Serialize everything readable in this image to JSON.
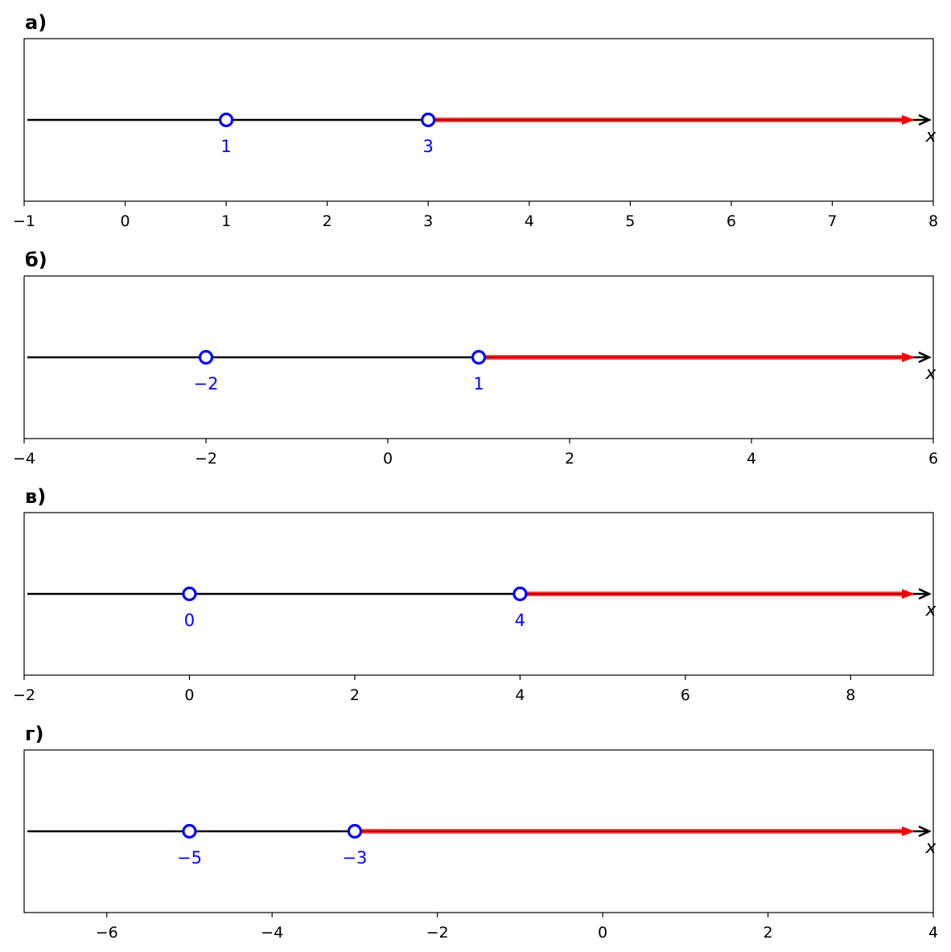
{
  "colors": {
    "axis_line": "#000000",
    "open_point_stroke": "#0000ff",
    "open_point_fill": "#ffffff",
    "point_label": "#0000ff",
    "solution_ray": "#ff0000",
    "frame": "#000000"
  },
  "chart_data": [
    {
      "type": "line",
      "panel_label": "а)",
      "xlim": [
        -1,
        8
      ],
      "xticks": [
        -1,
        0,
        1,
        2,
        3,
        4,
        5,
        6,
        7,
        8
      ],
      "xtick_labels": [
        "−1",
        "0",
        "1",
        "2",
        "3",
        "4",
        "5",
        "6",
        "7",
        "8"
      ],
      "axis_variable": "x",
      "open_points": [
        {
          "x": 1,
          "label": "1"
        },
        {
          "x": 3,
          "label": "3"
        }
      ],
      "ray": {
        "from": 3,
        "direction": "right"
      }
    },
    {
      "type": "line",
      "panel_label": "б)",
      "xlim": [
        -4,
        6
      ],
      "xticks": [
        -4,
        -2,
        0,
        2,
        4,
        6
      ],
      "xtick_labels": [
        "−4",
        "−2",
        "0",
        "2",
        "4",
        "6"
      ],
      "axis_variable": "x",
      "open_points": [
        {
          "x": -2,
          "label": "−2"
        },
        {
          "x": 1,
          "label": "1"
        }
      ],
      "ray": {
        "from": 1,
        "direction": "right"
      }
    },
    {
      "type": "line",
      "panel_label": "в)",
      "xlim": [
        -2,
        9
      ],
      "xticks": [
        -2,
        0,
        2,
        4,
        6,
        8
      ],
      "xtick_labels": [
        "−2",
        "0",
        "2",
        "4",
        "6",
        "8"
      ],
      "axis_variable": "x",
      "open_points": [
        {
          "x": 0,
          "label": "0"
        },
        {
          "x": 4,
          "label": "4"
        }
      ],
      "ray": {
        "from": 4,
        "direction": "right"
      }
    },
    {
      "type": "line",
      "panel_label": "г)",
      "xlim": [
        -7,
        4
      ],
      "xticks": [
        -6,
        -4,
        -2,
        0,
        2,
        4
      ],
      "xtick_labels": [
        "−6",
        "−4",
        "−2",
        "0",
        "2",
        "4"
      ],
      "axis_variable": "x",
      "open_points": [
        {
          "x": -5,
          "label": "−5"
        },
        {
          "x": -3,
          "label": "−3"
        }
      ],
      "ray": {
        "from": -3,
        "direction": "right"
      }
    }
  ]
}
